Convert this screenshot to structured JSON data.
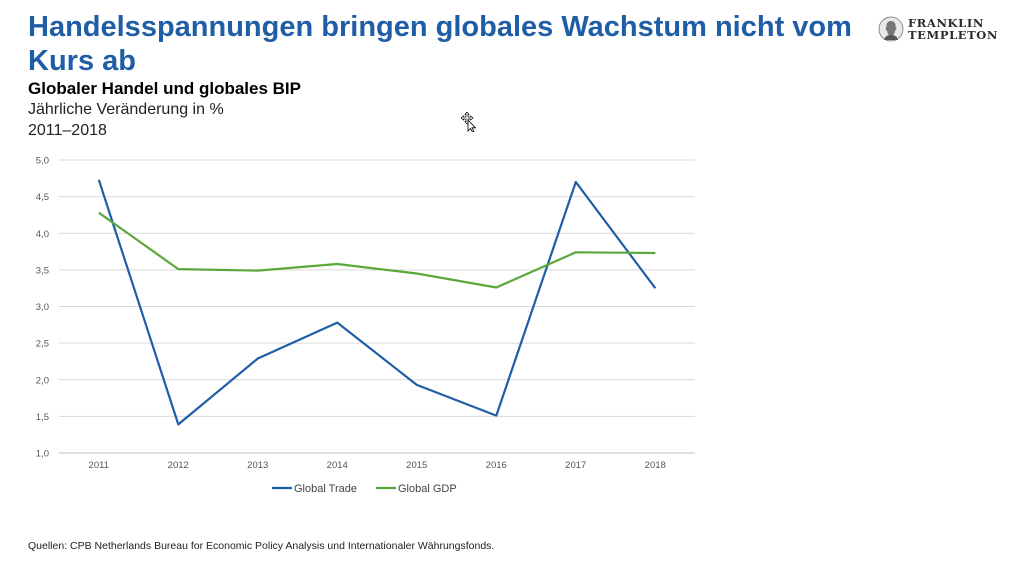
{
  "slide": {
    "title": "Handelsspannungen bringen globales Wachstum nicht vom Kurs ab",
    "logo": {
      "line1": "FRANKLIN",
      "line2": "TEMPLETON",
      "icon": "franklin-portrait-logo-icon"
    },
    "source": "Quellen: CPB Netherlands Bureau for Economic Policy Analysis und Internationaler Währungsfonds.",
    "cursor_icon": "move-cursor-icon"
  },
  "chart_data": {
    "type": "line",
    "title": "Globaler Handel und globales BIP",
    "subtitle": "Jährliche Veränderung in %",
    "period": "2011–2018",
    "categories": [
      "2011",
      "2012",
      "2013",
      "2014",
      "2015",
      "2016",
      "2017",
      "2018"
    ],
    "series": [
      {
        "name": "Global Trade",
        "color": "#1f5ea6",
        "values": [
          4.73,
          1.39,
          2.29,
          2.78,
          1.93,
          1.51,
          4.7,
          3.25
        ]
      },
      {
        "name": "Global GDP",
        "color": "#5aa83a",
        "values": [
          4.28,
          3.51,
          3.49,
          3.58,
          3.45,
          3.26,
          3.74,
          3.73
        ]
      }
    ],
    "ylim": [
      1.0,
      5.0
    ],
    "yticks": [
      "1,0",
      "1,5",
      "2,0",
      "2,5",
      "3,0",
      "3,5",
      "4,0",
      "4,5",
      "5,0"
    ],
    "grid": true,
    "legend": "bottom"
  }
}
